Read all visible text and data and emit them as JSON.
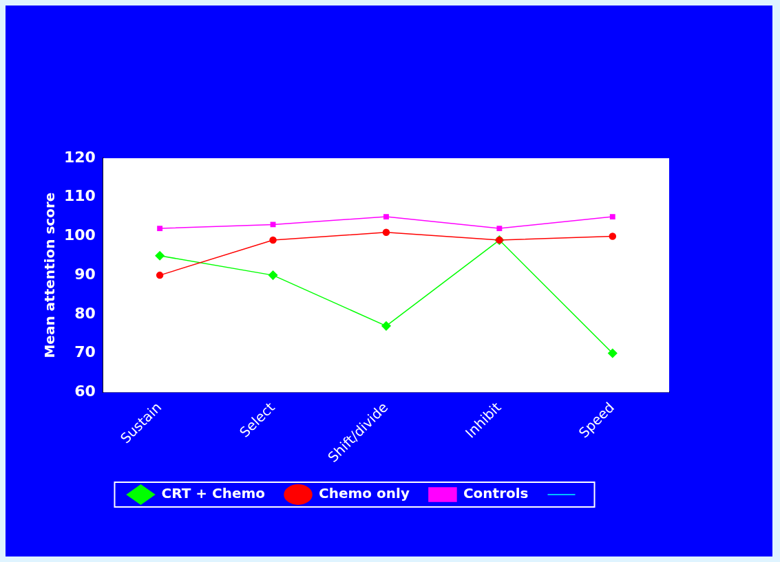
{
  "chart_data": {
    "type": "line",
    "ylabel": "Mean attention score",
    "categories": [
      "Sustain",
      "Select",
      "Shift/divide",
      "Inhibit",
      "Speed"
    ],
    "series": [
      {
        "name": "CRT + Chemo",
        "color": "#00ff00",
        "marker": "diamond",
        "values": [
          95,
          90,
          77,
          99,
          70
        ]
      },
      {
        "name": "Chemo only",
        "color": "#ff0000",
        "marker": "circle",
        "values": [
          90,
          99,
          101,
          99,
          100
        ]
      },
      {
        "name": "Controls",
        "color": "#ff00ff",
        "marker": "square",
        "values": [
          102,
          103,
          105,
          102,
          105
        ]
      },
      {
        "color": "#00ffff",
        "marker": "none",
        "values": [
          null,
          null,
          null,
          null,
          null
        ]
      }
    ],
    "ylim": [
      60,
      120
    ],
    "yticks": [
      60,
      70,
      80,
      90,
      100,
      110,
      120
    ],
    "grid": false,
    "legend": "bottom",
    "line_style": "solid"
  }
}
